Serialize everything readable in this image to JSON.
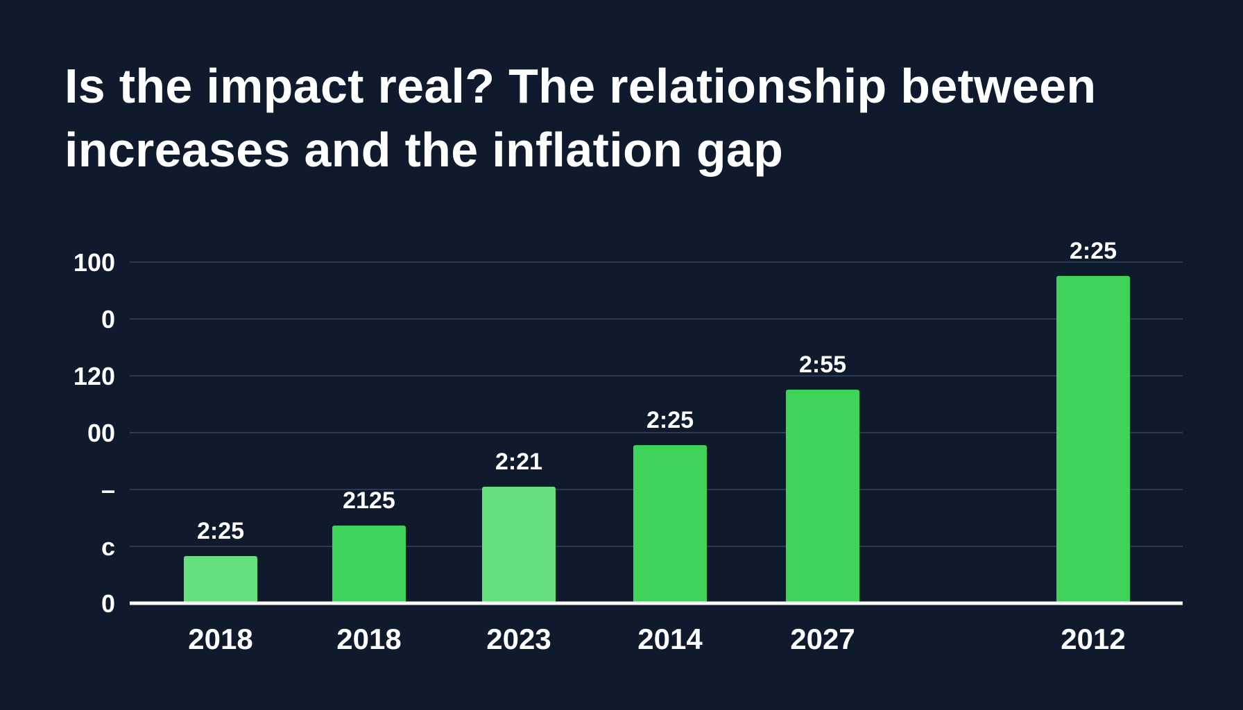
{
  "chart_data": {
    "type": "bar",
    "title_lines": [
      "Is the impact real? The relationship between",
      "increases and the inflation gap"
    ],
    "categories": [
      "2018",
      "2018",
      "2023",
      "2014",
      "2027",
      "2012"
    ],
    "values": [
      17,
      28,
      42,
      57,
      77,
      118
    ],
    "data_labels": [
      "2:25",
      "2125",
      "2:21",
      "2:25",
      "2:55",
      "2:25"
    ],
    "ytick_labels": [
      "0",
      "c",
      "–",
      "00",
      "120",
      "0",
      "100"
    ],
    "ylim": [
      0,
      123
    ],
    "xlabel": "",
    "ylabel": "",
    "grid": true,
    "colors": [
      "#66e07e",
      "#3fd35c",
      "#66e07e",
      "#3fd35c",
      "#3fd35c",
      "#3fd35c"
    ]
  }
}
